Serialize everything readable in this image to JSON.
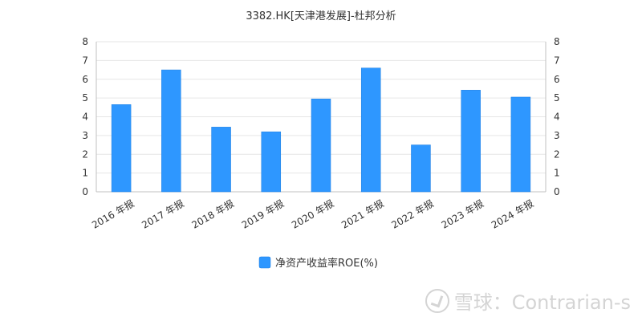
{
  "chart_data": {
    "type": "bar",
    "title": "3382.HK[天津港发展]-杜邦分析",
    "categories": [
      "2016 年报",
      "2017 年报",
      "2018 年报",
      "2019 年报",
      "2020 年报",
      "2021 年报",
      "2022 年报",
      "2023 年报",
      "2024 年报"
    ],
    "series": [
      {
        "name": "净资产收益率ROE(%)",
        "values": [
          4.65,
          6.5,
          3.45,
          3.2,
          4.95,
          6.6,
          2.5,
          5.42,
          5.05
        ]
      }
    ],
    "ylim": [
      0,
      8
    ],
    "yticks": [
      0,
      1,
      2,
      3,
      4,
      5,
      6,
      7,
      8
    ],
    "right_axis_ticks": [
      0,
      1,
      2,
      3,
      4,
      5,
      6,
      7,
      8
    ],
    "grid": true,
    "legend_position": "bottom-center",
    "colors": {
      "bar": "#2e97ff"
    }
  },
  "watermark": {
    "text": "雪球：Contrarian-s",
    "icon": "snowball-logo-icon"
  }
}
